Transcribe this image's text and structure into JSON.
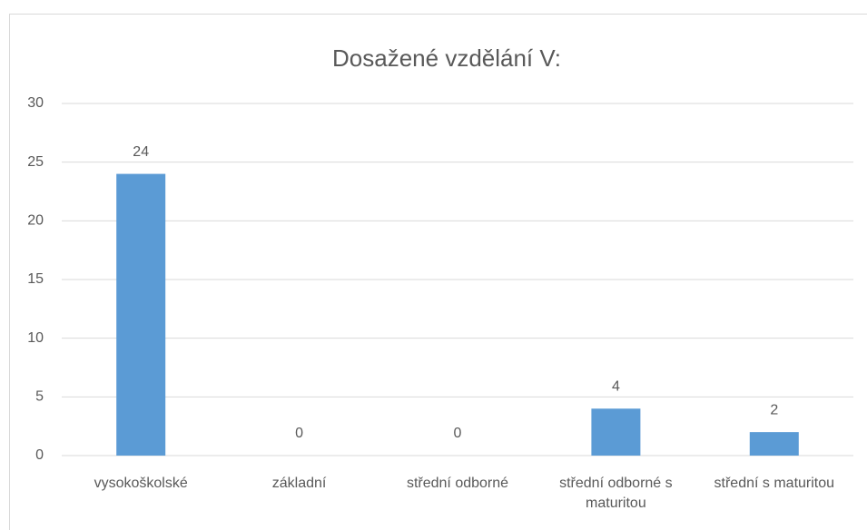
{
  "chart_data": {
    "type": "bar",
    "title": "Dosažené vzdělání V:",
    "categories": [
      "vysokoškolské",
      "základní",
      "střední odborné",
      "střední odborné s maturitou",
      "střední s maturitou"
    ],
    "values": [
      24,
      0,
      0,
      4,
      2
    ],
    "color": "#5b9bd5",
    "ylim": [
      0,
      30
    ],
    "yticks": [
      0,
      5,
      10,
      15,
      20,
      25,
      30
    ],
    "grid": true
  }
}
